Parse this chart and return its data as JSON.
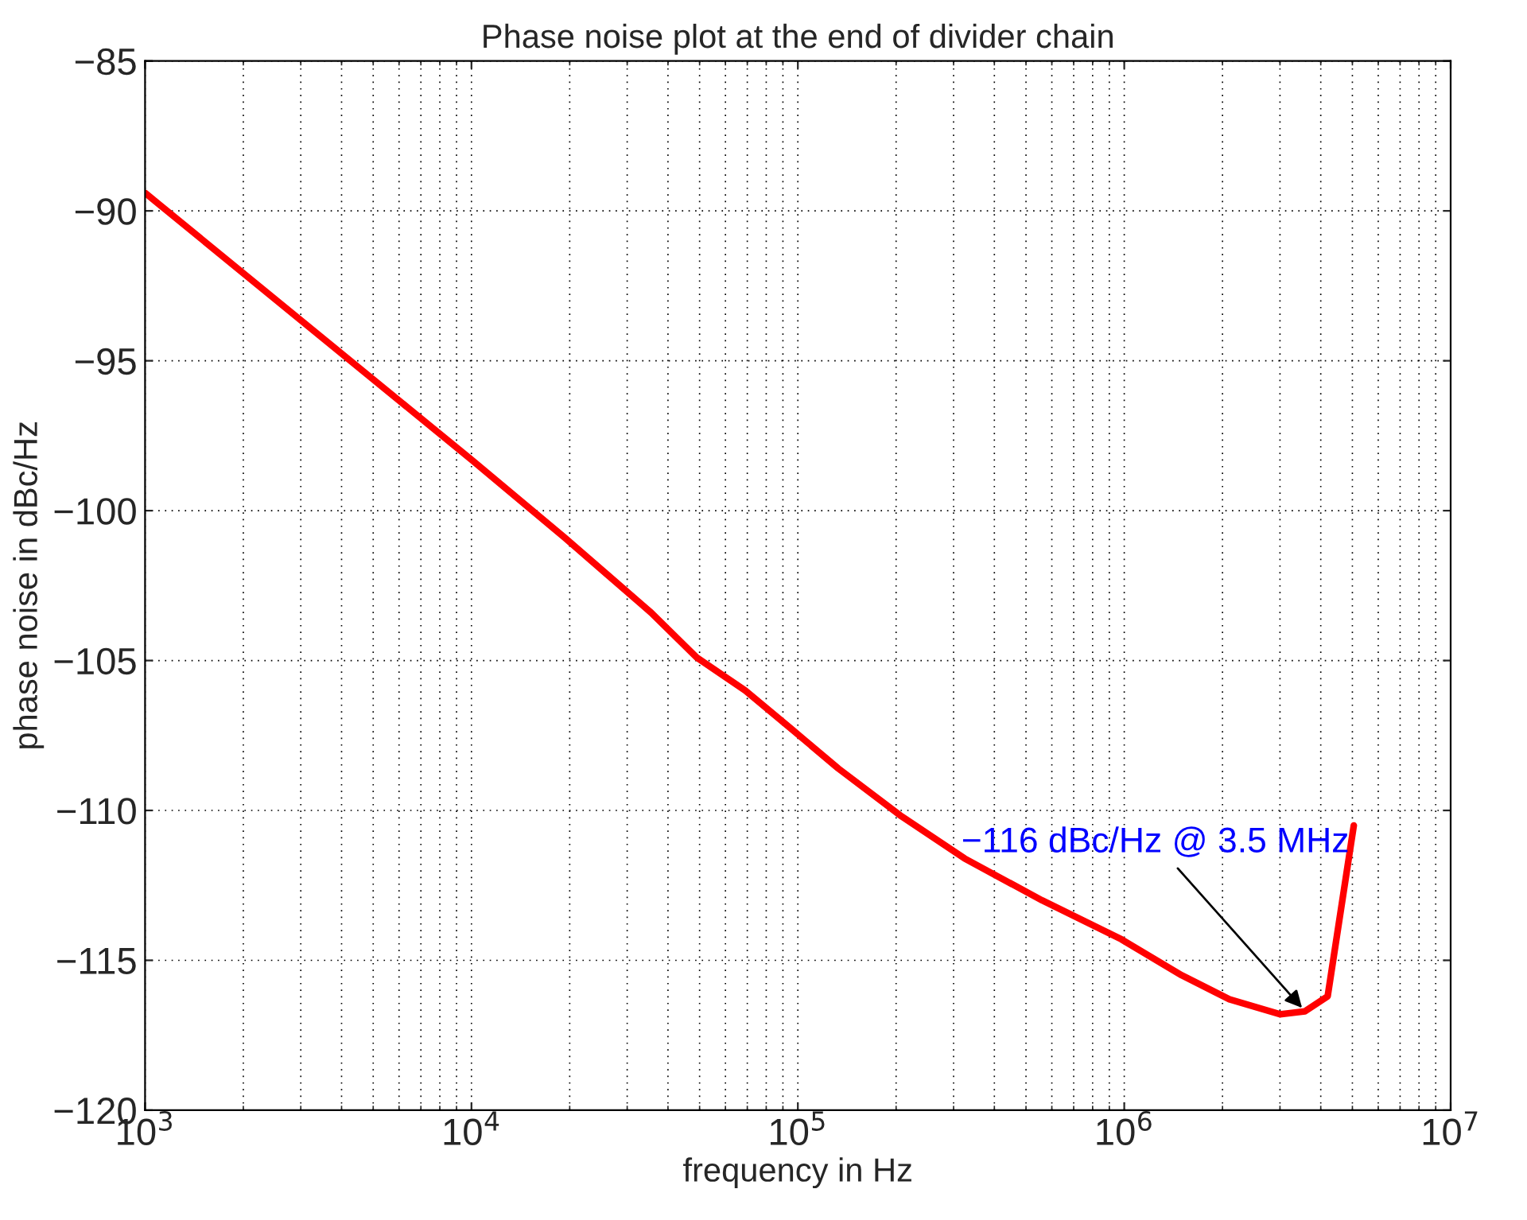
{
  "chart_data": {
    "type": "line",
    "title": "Phase noise plot at the end of divider chain",
    "xlabel": "frequency in Hz",
    "ylabel": "phase noise in dBc/Hz",
    "log": "x",
    "grid": true,
    "xlim": [
      1000,
      10000000
    ],
    "ylim": [
      -120,
      -85
    ],
    "xticks": [
      {
        "value": 1000,
        "label": "10$^{3}$"
      },
      {
        "value": 10000,
        "label": "10$^{4}$"
      },
      {
        "value": 100000,
        "label": "10$^{5}$"
      },
      {
        "value": 1000000,
        "label": "10$^{6}$"
      },
      {
        "value": 10000000,
        "label": "10$^{7}$"
      }
    ],
    "yticks": [
      {
        "value": -120,
        "label": "−120"
      },
      {
        "value": -115,
        "label": "−115"
      },
      {
        "value": -110,
        "label": "−110"
      },
      {
        "value": -105,
        "label": "−105"
      },
      {
        "value": -100,
        "label": "−100"
      },
      {
        "value": -95,
        "label": "−95"
      },
      {
        "value": -90,
        "label": "−90"
      },
      {
        "value": -85,
        "label": "−85"
      }
    ],
    "x": [
      1000,
      10000,
      19300,
      35500,
      49000,
      69000,
      96000,
      133000,
      208000,
      324000,
      560000,
      980000,
      1500000,
      2100000,
      3000000,
      3580000,
      4200000,
      5050000
    ],
    "series": [
      {
        "color": "#ff0000",
        "values": [
          -89.4,
          -98.3,
          -100.9,
          -103.4,
          -104.9,
          -106.0,
          -107.3,
          -108.6,
          -110.2,
          -111.6,
          -113.0,
          -114.3,
          -115.5,
          -116.3,
          -116.8,
          -116.7,
          -116.2,
          -110.5
        ]
      }
    ],
    "line_style": "solid",
    "marker": "none",
    "annotations": [
      {
        "text": "−116 dBc/Hz @ 3.5 MHz",
        "x": 3580000,
        "y": -116.7
      }
    ]
  }
}
